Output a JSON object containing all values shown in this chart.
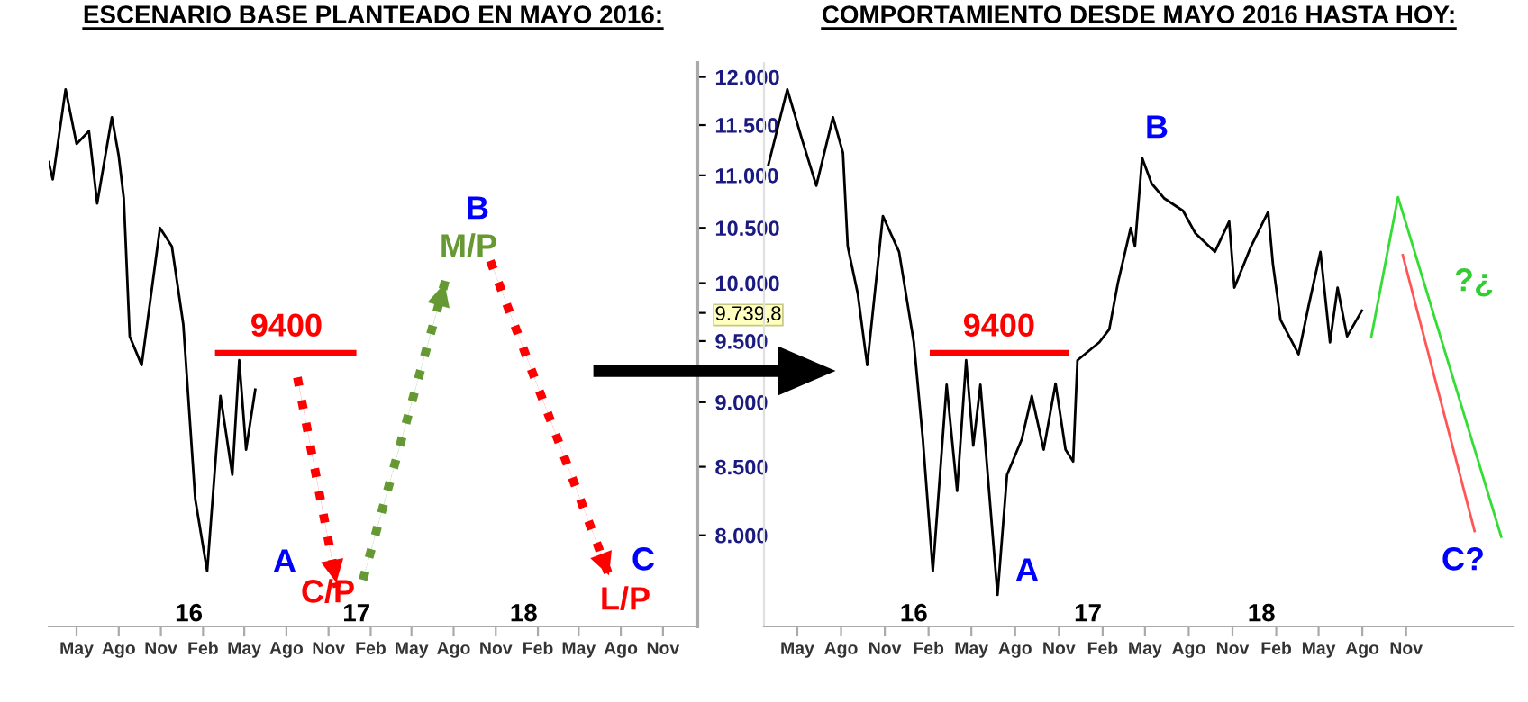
{
  "chart_data": [
    {
      "type": "line",
      "title": "ESCENARIO BASE PLANTEADO EN MAYO 2016:",
      "log": "y",
      "tick_labels": "xy",
      "grid": false,
      "legend": false,
      "marker": "none",
      "xlim": [
        "2015-03-01",
        "2019-01-15"
      ],
      "ylim": [
        7380,
        12150
      ],
      "xticks": [
        {
          "value": "2015-05-01",
          "label": "May"
        },
        {
          "value": "2015-08-01",
          "label": "Ago"
        },
        {
          "value": "2015-11-01",
          "label": "Nov"
        },
        {
          "value": "2016-02-01",
          "label": "Feb"
        },
        {
          "value": "2016-05-01",
          "label": "May"
        },
        {
          "value": "2016-08-01",
          "label": "Ago"
        },
        {
          "value": "2016-11-01",
          "label": "Nov"
        },
        {
          "value": "2017-02-01",
          "label": "Feb"
        },
        {
          "value": "2017-05-01",
          "label": "May"
        },
        {
          "value": "2017-08-01",
          "label": "Ago"
        },
        {
          "value": "2017-11-01",
          "label": "Nov"
        },
        {
          "value": "2018-02-01",
          "label": "Feb"
        },
        {
          "value": "2018-05-01",
          "label": "May"
        },
        {
          "value": "2018-08-01",
          "label": "Ago"
        },
        {
          "value": "2018-11-01",
          "label": "Nov"
        }
      ],
      "x2lim": [
        "2015-03-01",
        "2019-01-15"
      ],
      "x2ticks": [
        {
          "value": "2016-01-01",
          "label": "16"
        },
        {
          "value": "2017-01-01",
          "label": "17"
        },
        {
          "value": "2018-01-01",
          "label": "18"
        }
      ],
      "yticks": [
        {
          "value": 8000,
          "label": "8.000"
        },
        {
          "value": 8500,
          "label": "8.500"
        },
        {
          "value": 9000,
          "label": "9.000"
        },
        {
          "value": 9500,
          "label": "9.500"
        },
        {
          "value": 9739.8,
          "label": "9.739,8"
        },
        {
          "value": 10000,
          "label": "10.000"
        },
        {
          "value": 10500,
          "label": "10.500"
        },
        {
          "value": 11000,
          "label": "11.000"
        },
        {
          "value": 11500,
          "label": "11.500"
        },
        {
          "value": 12000,
          "label": "12.000"
        }
      ],
      "series": [
        {
          "type": "line",
          "color": "#000000",
          "line_style": "solid",
          "x": [
            "2015-03-01",
            "2015-03-10",
            "2015-04-07",
            "2015-05-01",
            "2015-05-28",
            "2015-06-15",
            "2015-07-17",
            "2015-08-01",
            "2015-08-12",
            "2015-08-25",
            "2015-09-20",
            "2015-10-30",
            "2015-11-25",
            "2015-12-20",
            "2016-01-15",
            "2016-02-10",
            "2016-03-10",
            "2016-04-05",
            "2016-04-20",
            "2016-05-05",
            "2016-05-25"
          ],
          "values": [
            11130,
            10960,
            11870,
            11310,
            11440,
            10730,
            11580,
            11190,
            10780,
            9540,
            9300,
            10500,
            10330,
            9640,
            8260,
            7750,
            9050,
            8440,
            9340,
            8630,
            9100
          ]
        },
        {
          "type": "line",
          "color": "#ff0000",
          "line_style": "solid",
          "x": [
            "2016-03-05",
            "2016-12-25"
          ],
          "values": [
            9400,
            9400
          ]
        },
        {
          "type": "line",
          "color": "#ff0000",
          "line_style": "dotted",
          "x": [
            "2016-08-25",
            "2016-11-20"
          ],
          "values": [
            9200,
            7640
          ]
        },
        {
          "type": "line",
          "color": "#669933",
          "line_style": "dotted",
          "x": [
            "2017-01-15",
            "2017-07-15"
          ],
          "values": [
            7690,
            10040
          ]
        },
        {
          "type": "line",
          "color": "#ff0000",
          "line_style": "dotted",
          "x": [
            "2017-10-20",
            "2018-07-10"
          ],
          "values": [
            10200,
            7690
          ]
        }
      ],
      "annotations": [
        {
          "text": "9400",
          "x": "2016-08-01",
          "y": 9400
        },
        "A",
        "C/P",
        "B",
        "M/P",
        "C",
        "L/P"
      ]
    },
    {
      "type": "line",
      "title": "COMPORTAMIENTO DESDE MAYO 2016 HASTA HOY:",
      "log": "y",
      "tick_labels": "x",
      "grid": false,
      "legend": false,
      "marker": "none",
      "xlim": [
        "2015-02-20",
        "2019-06-15"
      ],
      "ylim": [
        7380,
        12150
      ],
      "xticks": [
        {
          "value": "2015-05-01",
          "label": "May"
        },
        {
          "value": "2015-08-01",
          "label": "Ago"
        },
        {
          "value": "2015-11-01",
          "label": "Nov"
        },
        {
          "value": "2016-02-01",
          "label": "Feb"
        },
        {
          "value": "2016-05-01",
          "label": "May"
        },
        {
          "value": "2016-08-01",
          "label": "Ago"
        },
        {
          "value": "2016-11-01",
          "label": "Nov"
        },
        {
          "value": "2017-02-01",
          "label": "Feb"
        },
        {
          "value": "2017-05-01",
          "label": "May"
        },
        {
          "value": "2017-08-01",
          "label": "Ago"
        },
        {
          "value": "2017-11-01",
          "label": "Nov"
        },
        {
          "value": "2018-02-01",
          "label": "Feb"
        },
        {
          "value": "2018-05-01",
          "label": "May"
        },
        {
          "value": "2018-08-01",
          "label": "Ago"
        },
        {
          "value": "2018-11-01",
          "label": "Nov"
        }
      ],
      "x2lim": [
        "2015-02-20",
        "2019-06-15"
      ],
      "x2ticks": [
        {
          "value": "2016-01-01",
          "label": "16"
        },
        {
          "value": "2017-01-01",
          "label": "17"
        },
        {
          "value": "2018-01-01",
          "label": "18"
        }
      ],
      "series": [
        {
          "type": "line",
          "color": "#000000",
          "line_style": "solid",
          "x": [
            "2015-03-01",
            "2015-04-10",
            "2015-05-10",
            "2015-06-10",
            "2015-07-15",
            "2015-08-05",
            "2015-08-15",
            "2015-09-05",
            "2015-09-25",
            "2015-10-28",
            "2015-12-01",
            "2016-01-01",
            "2016-01-20",
            "2016-02-10",
            "2016-03-10",
            "2016-04-01",
            "2016-04-20",
            "2016-05-05",
            "2016-05-20",
            "2016-06-25",
            "2016-07-15",
            "2016-08-15",
            "2016-09-05",
            "2016-09-30",
            "2016-10-25",
            "2016-11-15",
            "2016-12-01",
            "2016-12-10",
            "2017-01-25",
            "2017-02-15",
            "2017-03-05",
            "2017-04-01",
            "2017-04-10",
            "2017-04-25",
            "2017-05-15",
            "2017-06-10",
            "2017-07-20",
            "2017-08-15",
            "2017-09-25",
            "2017-10-25",
            "2017-11-05",
            "2017-12-10",
            "2018-01-15",
            "2018-01-25",
            "2018-02-10",
            "2018-03-20",
            "2018-04-10",
            "2018-05-05",
            "2018-05-25",
            "2018-06-10",
            "2018-06-30",
            "2018-07-31"
          ],
          "values": [
            11100,
            11870,
            11370,
            10900,
            11580,
            11220,
            10330,
            9910,
            9300,
            10610,
            10280,
            9490,
            8710,
            7750,
            9140,
            8320,
            9340,
            8660,
            9140,
            7590,
            8440,
            8710,
            9050,
            8630,
            9150,
            8630,
            8540,
            9340,
            9490,
            9600,
            10000,
            10500,
            10330,
            11170,
            10920,
            10780,
            10660,
            10450,
            10280,
            10560,
            9960,
            10330,
            10650,
            10170,
            9680,
            9390,
            9800,
            10280,
            9490,
            9960,
            9540,
            9760
          ]
        },
        {
          "type": "line",
          "color": "#ff0000",
          "line_style": "solid",
          "x": [
            "2016-02-10",
            "2016-11-15"
          ],
          "values": [
            9400,
            9400
          ]
        },
        {
          "type": "line",
          "color": "#33dd33",
          "line_style": "solid",
          "x": [
            "2018-08-20",
            "2018-10-15",
            "2019-05-20"
          ],
          "values": [
            9540,
            10790,
            7990
          ]
        },
        {
          "type": "line",
          "color": "#ff5555",
          "line_style": "solid",
          "x": [
            "2018-10-25",
            "2019-03-25"
          ],
          "values": [
            10250,
            8030
          ]
        }
      ],
      "annotations": [
        {
          "text": "9400",
          "x": "2016-06-28",
          "y": 9400
        },
        "A",
        "B",
        "C?",
        "?¿"
      ]
    }
  ]
}
